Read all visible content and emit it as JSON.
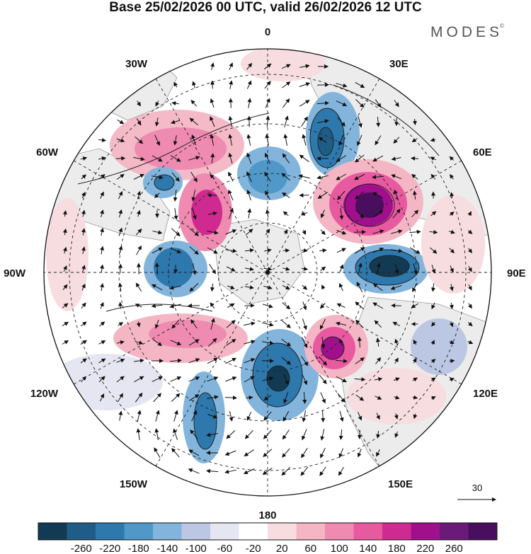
{
  "title": "Base 25/02/2026 00 UTC, valid 26/02/2026 12 UTC",
  "brand": {
    "name": "MODES",
    "mark": "©"
  },
  "longitude_labels": {
    "lon_0": "0",
    "lon_30e": "30E",
    "lon_60e": "60E",
    "lon_90e": "90E",
    "lon_120e": "120E",
    "lon_150e": "150E",
    "lon_180": "180",
    "lon_150w": "150W",
    "lon_120w": "120W",
    "lon_90w": "90W",
    "lon_60w": "60W",
    "lon_30w": "30W"
  },
  "vector_scale": {
    "label": "30"
  },
  "colorbar": {
    "colors": [
      "#123a52",
      "#1f5d87",
      "#2d78ad",
      "#4f98c8",
      "#83b5dc",
      "#bcc8e3",
      "#e6e6f2",
      "#ffffff",
      "#f7dde0",
      "#f4b6c4",
      "#ef8ab0",
      "#e85aa0",
      "#cf2a90",
      "#a0108c",
      "#6a1a78",
      "#4a0e5e"
    ],
    "labels": [
      "-260",
      "-220",
      "-180",
      "-140",
      "-100",
      "-60",
      "-20",
      "20",
      "60",
      "100",
      "140",
      "180",
      "220",
      "260"
    ]
  },
  "map_features": {
    "projection": "north-polar-stereographic",
    "field": "shaded anomaly with wind vectors",
    "positive_color": "#e85aa0",
    "negative_color": "#2d78ad"
  }
}
